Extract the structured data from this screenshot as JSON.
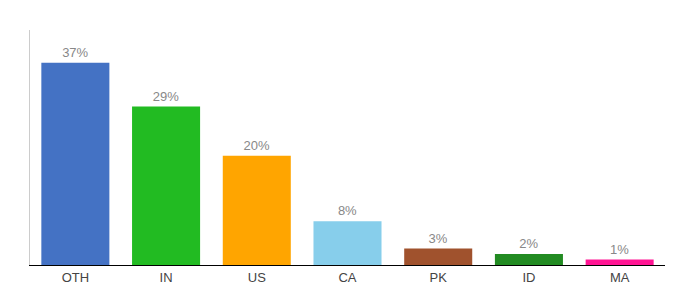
{
  "chart_data": {
    "type": "bar",
    "categories": [
      "OTH",
      "IN",
      "US",
      "CA",
      "PK",
      "ID",
      "MA"
    ],
    "values": [
      37,
      29,
      20,
      8,
      3,
      2,
      1
    ],
    "value_labels": [
      "37%",
      "29%",
      "20%",
      "8%",
      "3%",
      "2%",
      "1%"
    ],
    "colors": [
      "#4472C4",
      "#22BB22",
      "#FFA500",
      "#87CEEB",
      "#A0522D",
      "#228B22",
      "#FF1493"
    ],
    "ylim": [
      0,
      43
    ],
    "grid": false,
    "data_labels": true,
    "tick_labels": "x"
  }
}
